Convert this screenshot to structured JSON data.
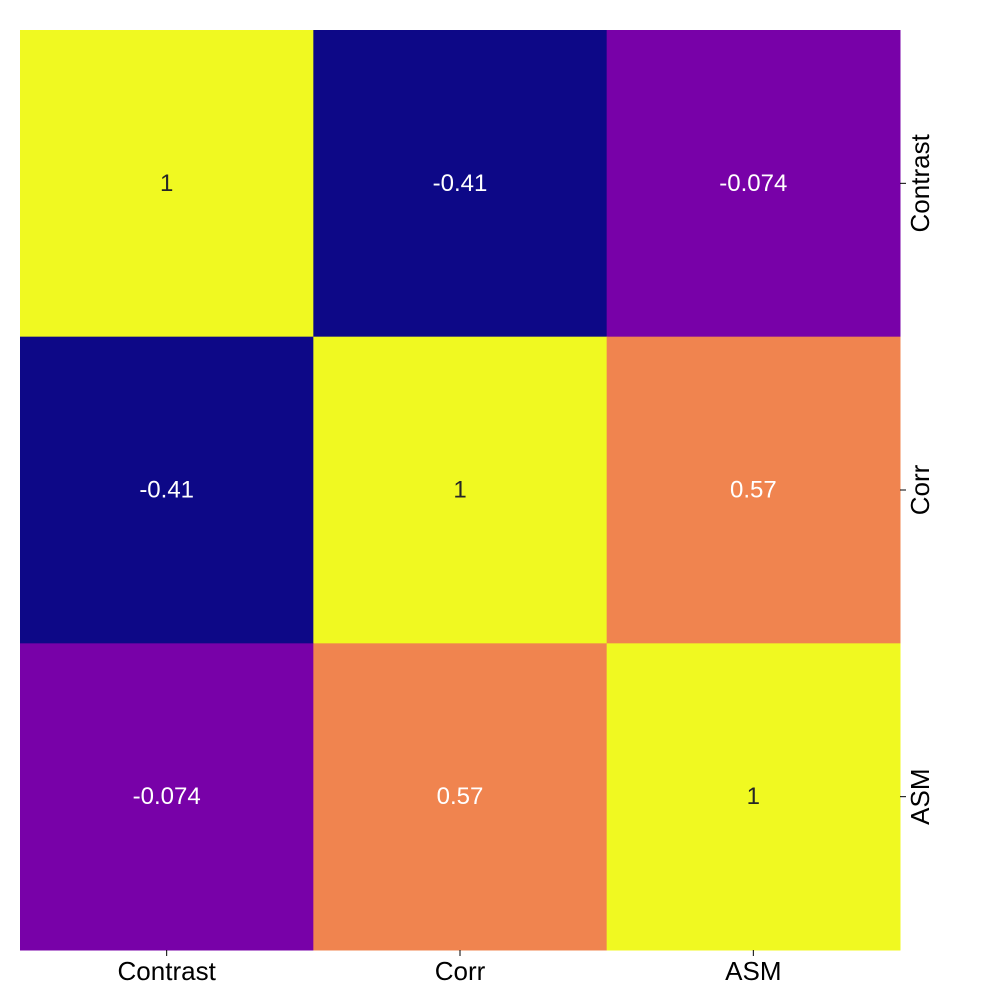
{
  "chart_data": {
    "type": "heatmap",
    "title": "",
    "xlabel": "",
    "ylabel": "",
    "x_categories": [
      "Contrast",
      "Corr",
      "ASM"
    ],
    "y_categories": [
      "Contrast",
      "Corr",
      "ASM"
    ],
    "y_axis_position": "right",
    "colormap": "plasma",
    "colorbar": false,
    "values": [
      [
        1,
        -0.41,
        -0.074
      ],
      [
        -0.41,
        1,
        0.57
      ],
      [
        -0.074,
        0.57,
        1
      ]
    ],
    "value_labels": [
      [
        "1",
        "-0.41",
        "-0.074"
      ],
      [
        "-0.41",
        "1",
        "0.57"
      ],
      [
        "-0.074",
        "0.57",
        "1"
      ]
    ],
    "cell_colors": [
      [
        "#f0f921",
        "#0d0887",
        "#7801a8"
      ],
      [
        "#0d0887",
        "#f0f921",
        "#f0844f"
      ],
      [
        "#7801a8",
        "#f0844f",
        "#f0f921"
      ]
    ],
    "label_colors": [
      [
        "#262626",
        "#ffffff",
        "#ffffff"
      ],
      [
        "#ffffff",
        "#262626",
        "#ffffff"
      ],
      [
        "#ffffff",
        "#ffffff",
        "#262626"
      ]
    ]
  }
}
